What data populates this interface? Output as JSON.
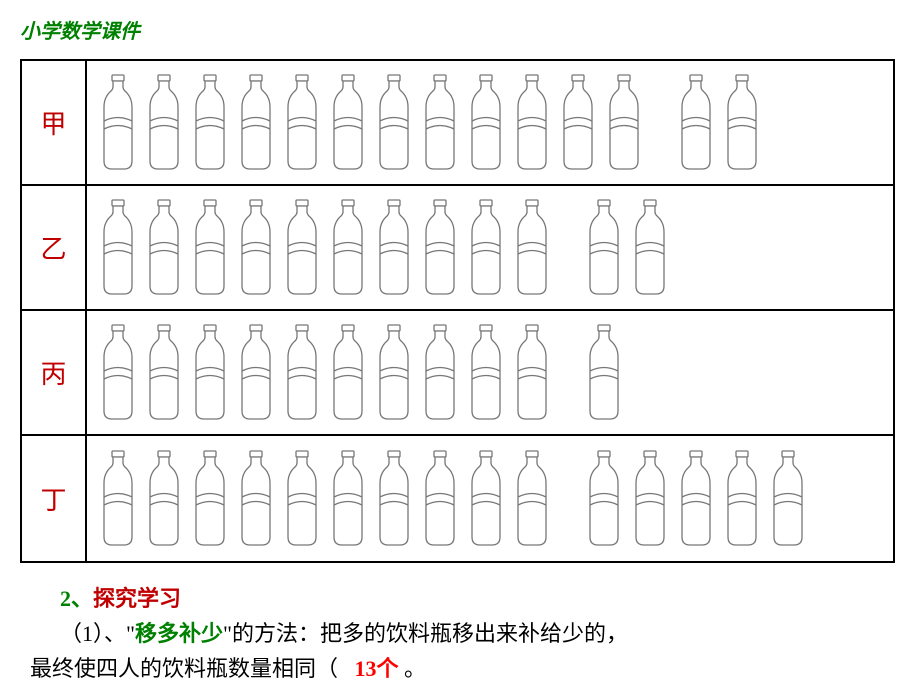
{
  "header": {
    "title": "小学数学课件"
  },
  "table": {
    "rows": [
      {
        "label": "甲",
        "groups": [
          12,
          2
        ]
      },
      {
        "label": "乙",
        "groups": [
          10,
          2
        ]
      },
      {
        "label": "丙",
        "groups": [
          10,
          1
        ]
      },
      {
        "label": "丁",
        "groups": [
          10,
          5
        ]
      }
    ]
  },
  "bottle_style": {
    "stroke": "#777777",
    "fill": "#ffffff",
    "stroke_width": 1.3
  },
  "footer": {
    "section_num": "2、",
    "section_title": "探究学习",
    "item_num": "（1）、",
    "quote_open": "\"",
    "method_name": "移多补少",
    "quote_close": "\"",
    "method_suffix": "的方法：",
    "description1": "把多的饮料瓶移出来补给少的，",
    "description2": "最终使四人的饮料瓶数量相同（",
    "answer": "13个",
    "closing": "。"
  },
  "colors": {
    "green": "#008000",
    "red_title": "#c00000",
    "answer_red": "#ff0000",
    "border": "#000000"
  }
}
